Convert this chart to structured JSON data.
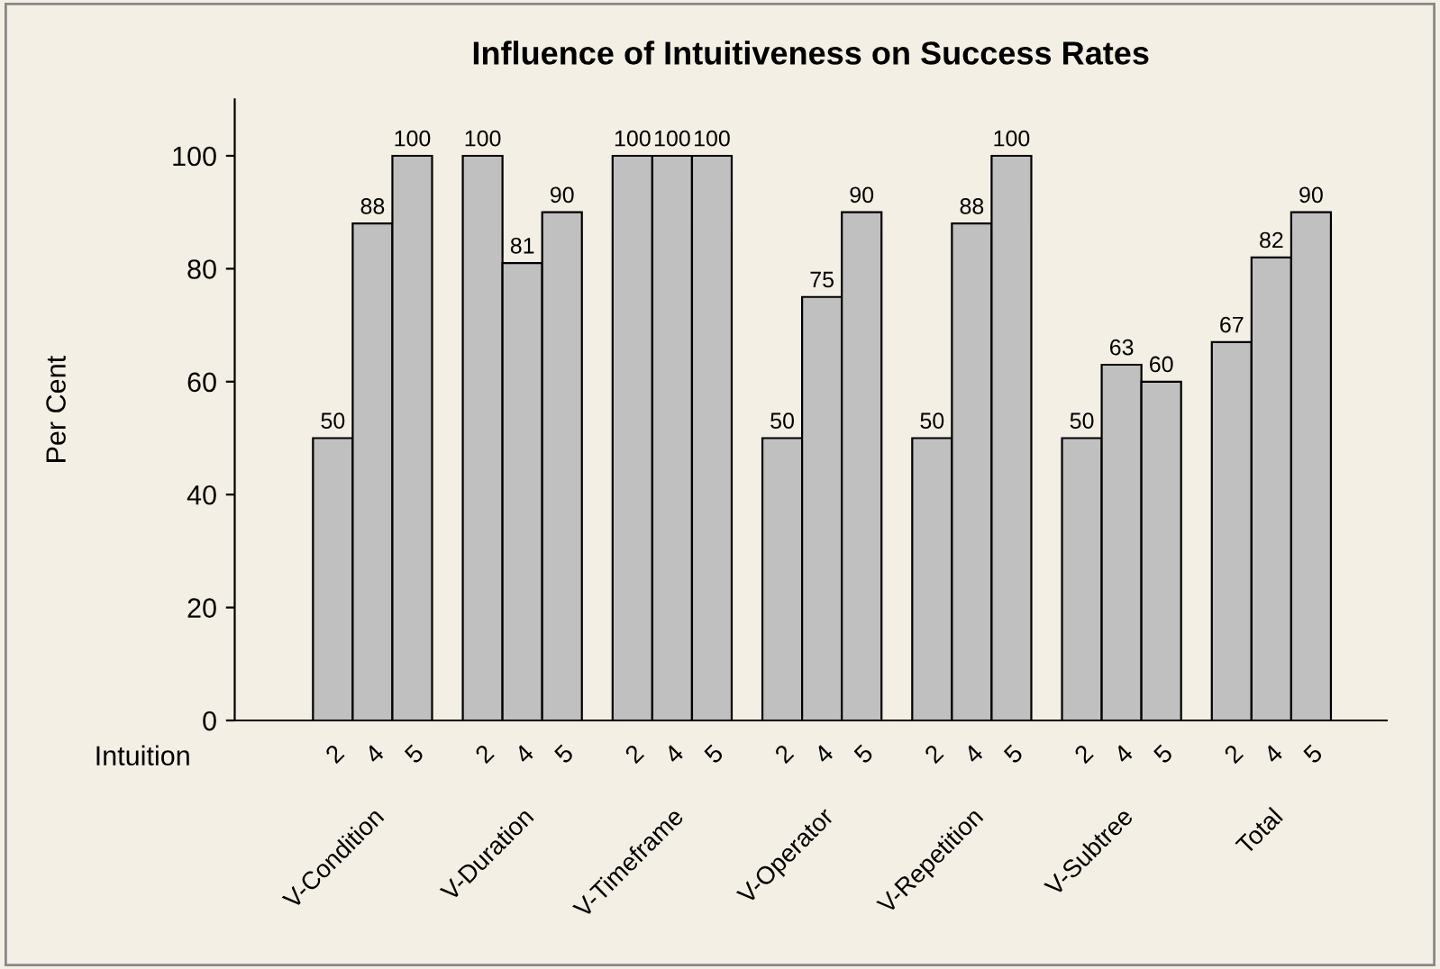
{
  "chart_data": {
    "type": "bar",
    "title": "Influence of Intuitiveness on Success Rates",
    "ylabel": "Per Cent",
    "xlabel": "Intuition",
    "categories": [
      "V-Condition",
      "V-Duration",
      "V-Timeframe",
      "V-Operator",
      "V-Repetition",
      "V-Subtree",
      "Total"
    ],
    "series": [
      {
        "name": "2",
        "color": "#c0c0c0",
        "values": [
          50,
          100,
          100,
          50,
          50,
          50,
          67
        ]
      },
      {
        "name": "4",
        "color": "#c0c0c0",
        "values": [
          88,
          81,
          100,
          75,
          88,
          63,
          82
        ]
      },
      {
        "name": "5",
        "color": "#c0c0c0",
        "values": [
          100,
          90,
          100,
          90,
          100,
          60,
          90
        ]
      }
    ],
    "ylim": [
      0,
      110
    ],
    "yticks": [
      0,
      20,
      40,
      60,
      80,
      100
    ],
    "data_labels": true,
    "grid": false,
    "legend": false
  }
}
